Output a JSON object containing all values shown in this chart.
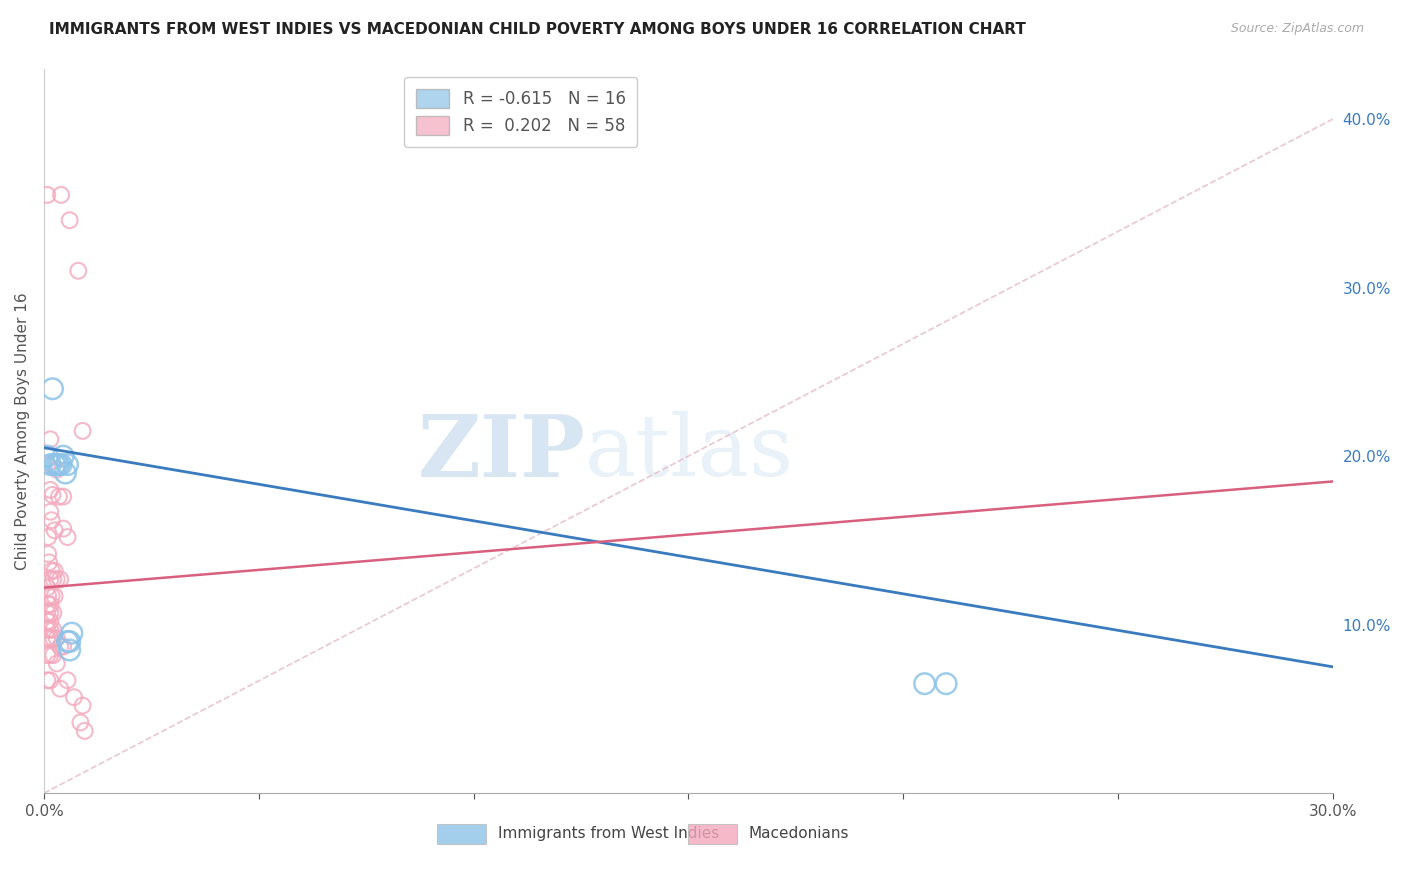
{
  "title": "IMMIGRANTS FROM WEST INDIES VS MACEDONIAN CHILD POVERTY AMONG BOYS UNDER 16 CORRELATION CHART",
  "source": "Source: ZipAtlas.com",
  "ylabel": "Child Poverty Among Boys Under 16",
  "legend_label1": "Immigrants from West Indies",
  "legend_label2": "Macedonians",
  "R1": -0.615,
  "N1": 16,
  "R2": 0.202,
  "N2": 58,
  "blue_color": "#8dc3e8",
  "pink_color": "#f4a8bc",
  "blue_line_color": "#3a7bbf",
  "pink_line_color": "#d95f7f",
  "diag_color": "#e8bcc8",
  "blue_scatter": [
    [
      0.0008,
      0.2
    ],
    [
      0.0015,
      0.195
    ],
    [
      0.002,
      0.24
    ],
    [
      0.0025,
      0.195
    ],
    [
      0.003,
      0.195
    ],
    [
      0.0035,
      0.195
    ],
    [
      0.004,
      0.195
    ],
    [
      0.0045,
      0.2
    ],
    [
      0.005,
      0.19
    ],
    [
      0.0055,
      0.195
    ],
    [
      0.006,
      0.09
    ],
    [
      0.0065,
      0.095
    ],
    [
      0.0055,
      0.09
    ],
    [
      0.006,
      0.085
    ],
    [
      0.205,
      0.065
    ],
    [
      0.21,
      0.065
    ]
  ],
  "pink_scatter": [
    [
      0.0008,
      0.355
    ],
    [
      0.004,
      0.355
    ],
    [
      0.006,
      0.34
    ],
    [
      0.008,
      0.31
    ],
    [
      0.009,
      0.215
    ],
    [
      0.0015,
      0.21
    ],
    [
      0.0008,
      0.195
    ],
    [
      0.003,
      0.192
    ],
    [
      0.0015,
      0.18
    ],
    [
      0.002,
      0.177
    ],
    [
      0.0035,
      0.176
    ],
    [
      0.0045,
      0.176
    ],
    [
      0.0015,
      0.167
    ],
    [
      0.0018,
      0.162
    ],
    [
      0.001,
      0.152
    ],
    [
      0.0025,
      0.156
    ],
    [
      0.0045,
      0.157
    ],
    [
      0.0055,
      0.152
    ],
    [
      0.001,
      0.142
    ],
    [
      0.0012,
      0.137
    ],
    [
      0.0018,
      0.132
    ],
    [
      0.0025,
      0.132
    ],
    [
      0.0015,
      0.127
    ],
    [
      0.0022,
      0.127
    ],
    [
      0.003,
      0.127
    ],
    [
      0.0038,
      0.127
    ],
    [
      0.0008,
      0.122
    ],
    [
      0.001,
      0.117
    ],
    [
      0.0018,
      0.117
    ],
    [
      0.0025,
      0.117
    ],
    [
      0.001,
      0.112
    ],
    [
      0.0016,
      0.112
    ],
    [
      0.0008,
      0.107
    ],
    [
      0.0015,
      0.107
    ],
    [
      0.0022,
      0.107
    ],
    [
      0.0008,
      0.102
    ],
    [
      0.0015,
      0.102
    ],
    [
      0.0008,
      0.097
    ],
    [
      0.0015,
      0.097
    ],
    [
      0.0022,
      0.097
    ],
    [
      0.0008,
      0.092
    ],
    [
      0.0015,
      0.092
    ],
    [
      0.0022,
      0.092
    ],
    [
      0.003,
      0.092
    ],
    [
      0.0038,
      0.087
    ],
    [
      0.0045,
      0.087
    ],
    [
      0.0008,
      0.082
    ],
    [
      0.0015,
      0.082
    ],
    [
      0.0022,
      0.082
    ],
    [
      0.003,
      0.077
    ],
    [
      0.0008,
      0.067
    ],
    [
      0.0015,
      0.067
    ],
    [
      0.0055,
      0.067
    ],
    [
      0.0038,
      0.062
    ],
    [
      0.007,
      0.057
    ],
    [
      0.009,
      0.052
    ],
    [
      0.0085,
      0.042
    ],
    [
      0.0095,
      0.037
    ]
  ],
  "xlim": [
    0.0,
    0.3
  ],
  "ylim": [
    0.0,
    0.43
  ],
  "xtick_positions": [
    0.0,
    0.05,
    0.1,
    0.15,
    0.2,
    0.25,
    0.3
  ],
  "xtick_labels": [
    "0.0%",
    "",
    "",
    "",
    "",
    "",
    "30.0%"
  ],
  "yticks_right": [
    0.1,
    0.2,
    0.3,
    0.4
  ],
  "grid_color": "#d0d0d0",
  "background_color": "#ffffff",
  "watermark_zip": "ZIP",
  "watermark_atlas": "atlas",
  "blue_trend": [
    0.0,
    0.3,
    0.205,
    0.075
  ],
  "pink_trend": [
    0.0,
    0.3,
    0.122,
    0.185
  ],
  "diag_line": [
    0.0,
    0.3,
    0.0,
    0.4
  ]
}
